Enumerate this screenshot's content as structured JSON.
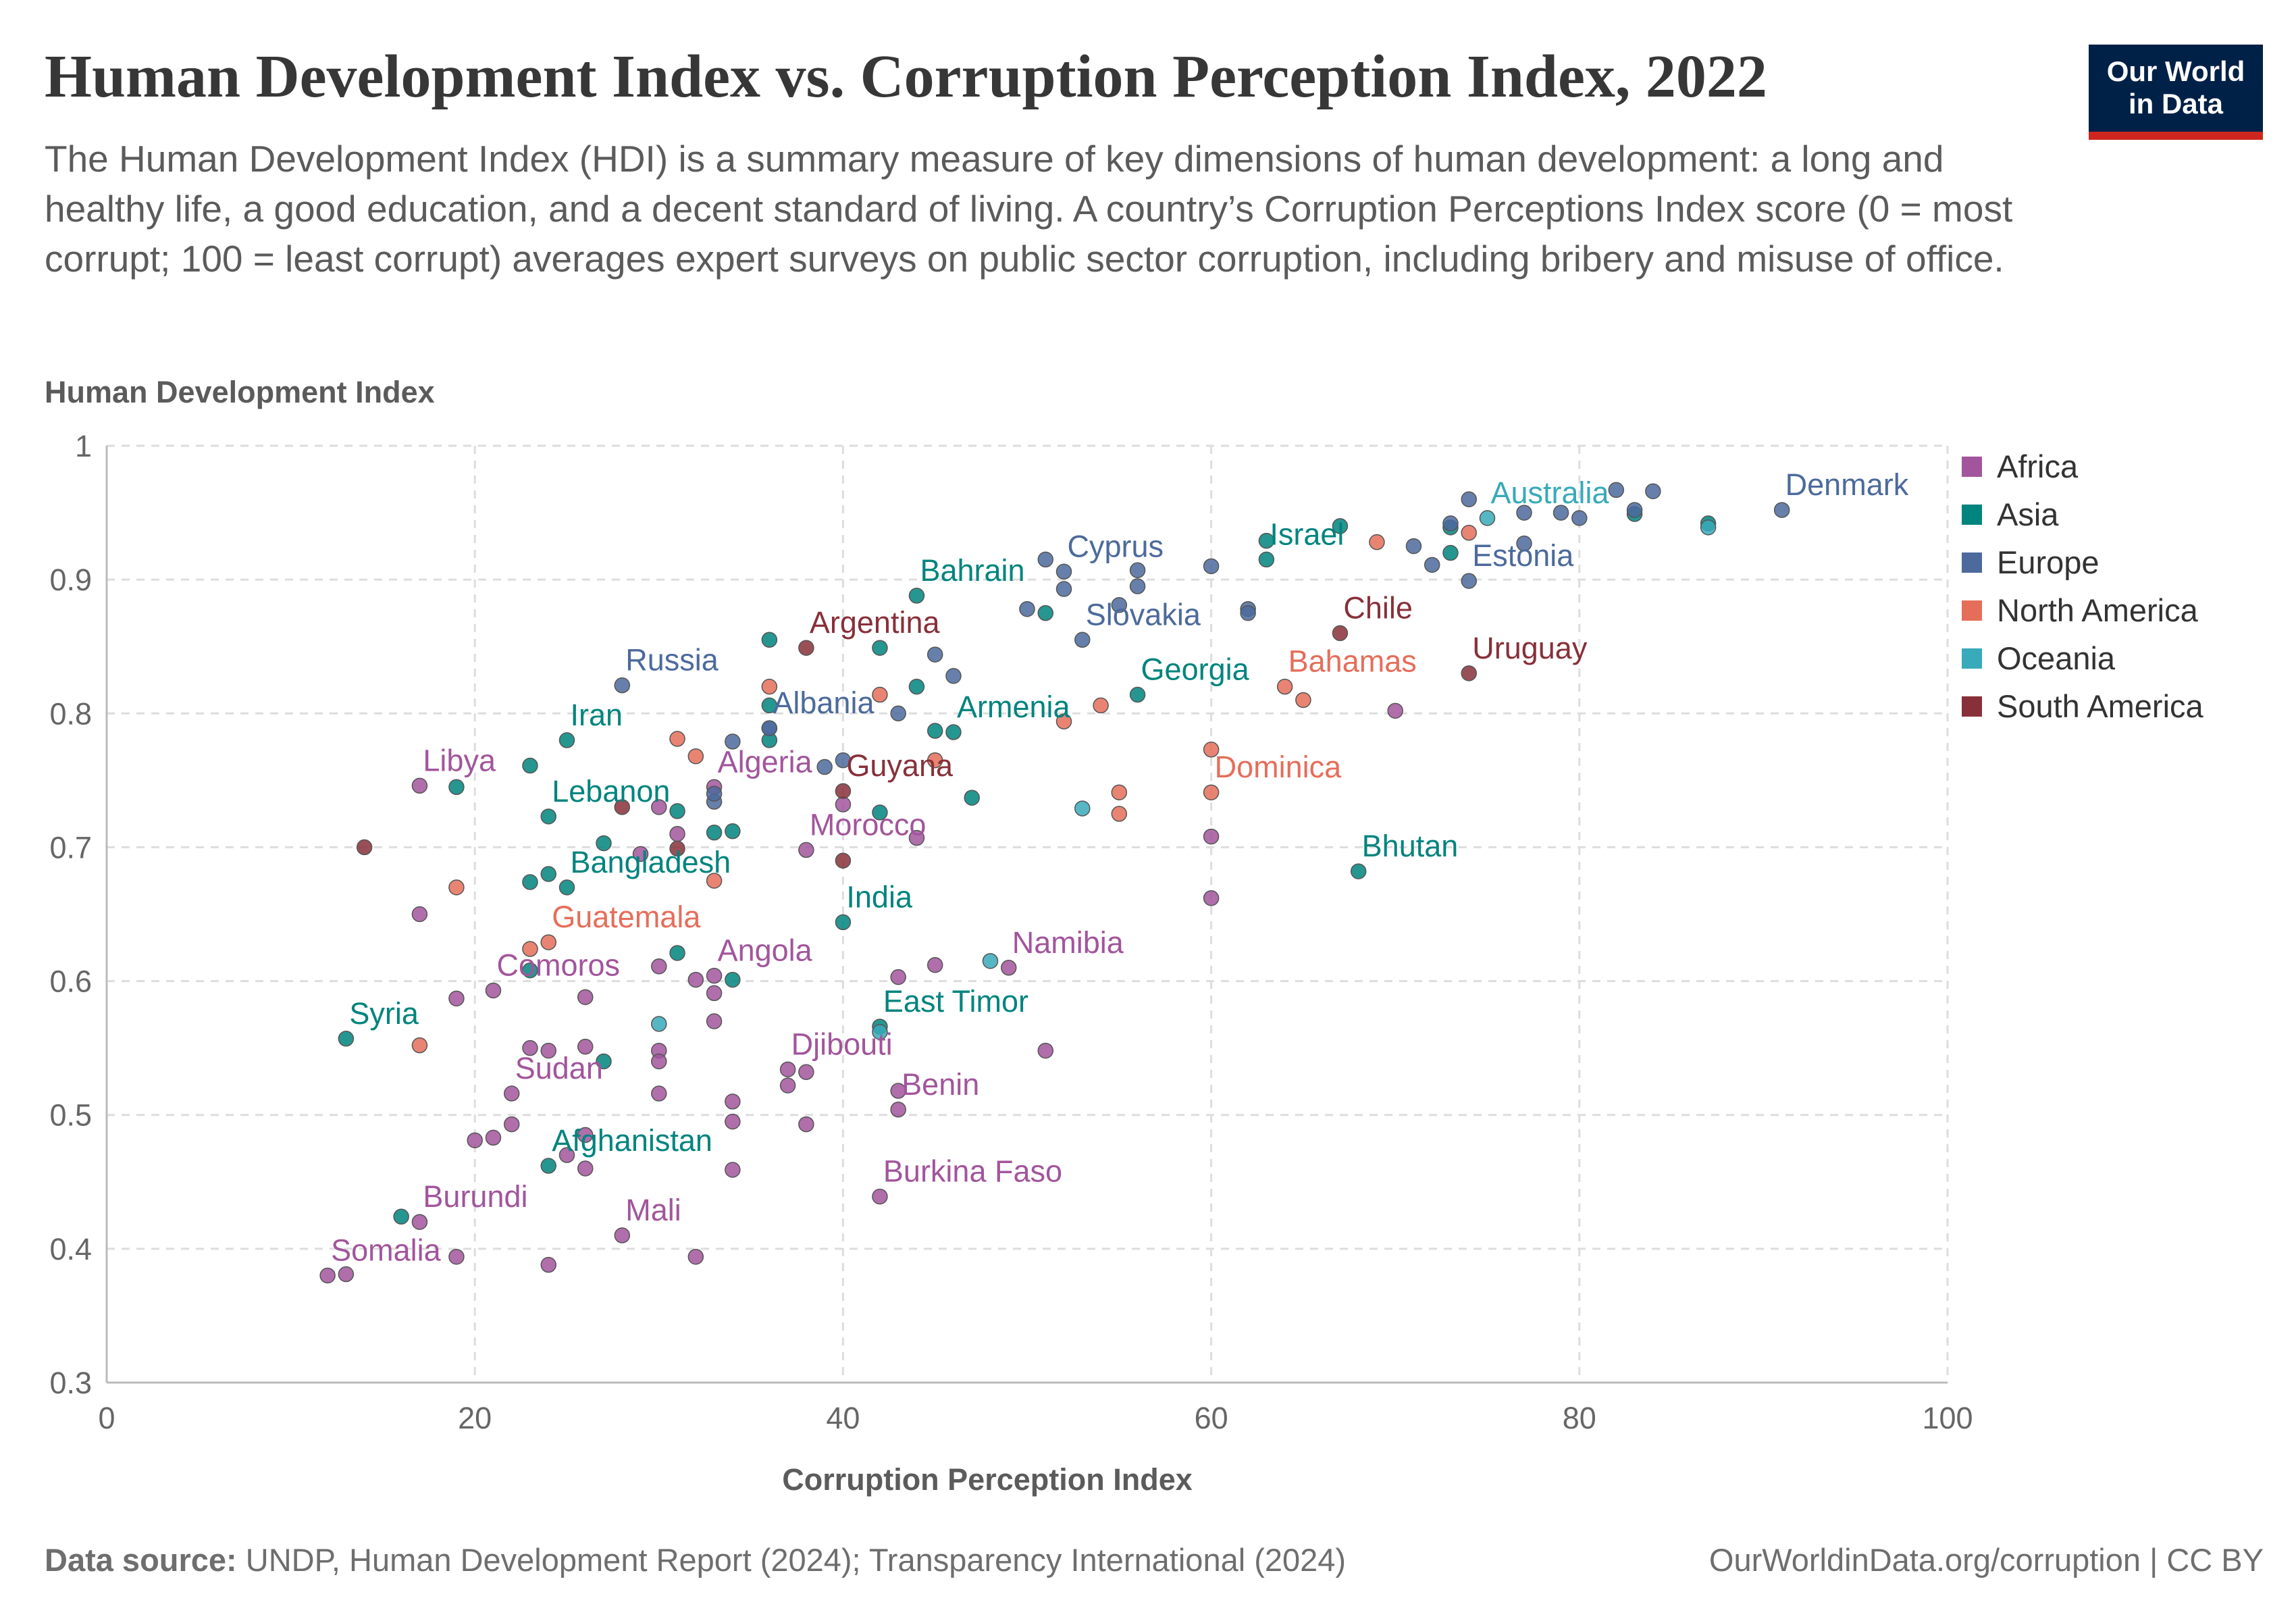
{
  "title": "Human Development Index vs. Corruption Perception Index, 2022",
  "subtitle": "The Human Development Index (HDI) is a summary measure of key dimensions of human development: a long and healthy life, a good education, and a decent standard of living. A country’s Corruption Perceptions Index score (0 = most corrupt; 100 = least corrupt) averages expert surveys on public sector corruption, including bribery and misuse of office.",
  "logo": {
    "line1": "Our World",
    "line2": "in Data"
  },
  "footer": {
    "source_label": "Data source:",
    "source_text": "UNDP, Human Development Report (2024); Transparency International (2024)",
    "url_text": "OurWorldinData.org/corruption | CC BY"
  },
  "colors": {
    "Africa": "#a2559c",
    "Asia": "#00847e",
    "Europe": "#4c6a9c",
    "North America": "#e56e5a",
    "Oceania": "#38aaba",
    "South America": "#883039"
  },
  "chart_data": {
    "type": "scatter",
    "title": "Human Development Index vs. Corruption Perception Index, 2022",
    "xlabel": "Corruption Perception Index",
    "ylabel": "Human Development Index",
    "xlim": [
      0,
      100
    ],
    "ylim": [
      0.3,
      1
    ],
    "xticks": [
      0,
      20,
      40,
      60,
      80,
      100
    ],
    "yticks": [
      0.3,
      0.4,
      0.5,
      0.6,
      0.7,
      0.8,
      0.9,
      1
    ],
    "grid": true,
    "legend_position": "right",
    "series": [
      {
        "name": "Africa",
        "points": [
          {
            "x": 12,
            "y": 0.38,
            "label": "Somalia"
          },
          {
            "x": 13,
            "y": 0.381
          },
          {
            "x": 17,
            "y": 0.42,
            "label": "Burundi"
          },
          {
            "x": 17,
            "y": 0.746,
            "label": "Libya"
          },
          {
            "x": 17,
            "y": 0.65
          },
          {
            "x": 19,
            "y": 0.394
          },
          {
            "x": 19,
            "y": 0.587
          },
          {
            "x": 20,
            "y": 0.481
          },
          {
            "x": 21,
            "y": 0.483
          },
          {
            "x": 21,
            "y": 0.593,
            "label": "Comoros"
          },
          {
            "x": 22,
            "y": 0.516,
            "label": "Sudan"
          },
          {
            "x": 22,
            "y": 0.493
          },
          {
            "x": 23,
            "y": 0.55
          },
          {
            "x": 24,
            "y": 0.548
          },
          {
            "x": 24,
            "y": 0.388
          },
          {
            "x": 25,
            "y": 0.47
          },
          {
            "x": 26,
            "y": 0.46
          },
          {
            "x": 26,
            "y": 0.551
          },
          {
            "x": 26,
            "y": 0.588
          },
          {
            "x": 26,
            "y": 0.485
          },
          {
            "x": 28,
            "y": 0.41,
            "label": "Mali"
          },
          {
            "x": 29,
            "y": 0.695
          },
          {
            "x": 30,
            "y": 0.548
          },
          {
            "x": 30,
            "y": 0.54
          },
          {
            "x": 30,
            "y": 0.516
          },
          {
            "x": 30,
            "y": 0.611
          },
          {
            "x": 30,
            "y": 0.73
          },
          {
            "x": 31,
            "y": 0.71
          },
          {
            "x": 32,
            "y": 0.394
          },
          {
            "x": 32,
            "y": 0.601
          },
          {
            "x": 33,
            "y": 0.591
          },
          {
            "x": 33,
            "y": 0.57
          },
          {
            "x": 33,
            "y": 0.745,
            "label": "Algeria"
          },
          {
            "x": 33,
            "y": 0.604,
            "label": "Angola"
          },
          {
            "x": 34,
            "y": 0.459
          },
          {
            "x": 34,
            "y": 0.51
          },
          {
            "x": 34,
            "y": 0.495
          },
          {
            "x": 37,
            "y": 0.534,
            "label": "Djibouti"
          },
          {
            "x": 37,
            "y": 0.522
          },
          {
            "x": 38,
            "y": 0.532
          },
          {
            "x": 38,
            "y": 0.493
          },
          {
            "x": 38,
            "y": 0.698,
            "label": "Morocco"
          },
          {
            "x": 40,
            "y": 0.732
          },
          {
            "x": 42,
            "y": 0.439,
            "label": "Burkina Faso"
          },
          {
            "x": 43,
            "y": 0.504,
            "label": "Benin"
          },
          {
            "x": 43,
            "y": 0.518
          },
          {
            "x": 43,
            "y": 0.603
          },
          {
            "x": 44,
            "y": 0.707
          },
          {
            "x": 45,
            "y": 0.612
          },
          {
            "x": 49,
            "y": 0.61,
            "label": "Namibia"
          },
          {
            "x": 51,
            "y": 0.548
          },
          {
            "x": 60,
            "y": 0.708
          },
          {
            "x": 60,
            "y": 0.662
          },
          {
            "x": 70,
            "y": 0.802
          }
        ]
      },
      {
        "name": "Asia",
        "points": [
          {
            "x": 13,
            "y": 0.557,
            "label": "Syria"
          },
          {
            "x": 16,
            "y": 0.424
          },
          {
            "x": 19,
            "y": 0.745
          },
          {
            "x": 23,
            "y": 0.761
          },
          {
            "x": 23,
            "y": 0.674
          },
          {
            "x": 23,
            "y": 0.608
          },
          {
            "x": 24,
            "y": 0.462,
            "label": "Afghanistan"
          },
          {
            "x": 24,
            "y": 0.723,
            "label": "Lebanon"
          },
          {
            "x": 24,
            "y": 0.68
          },
          {
            "x": 25,
            "y": 0.67,
            "label": "Bangladesh"
          },
          {
            "x": 25,
            "y": 0.78,
            "label": "Iran"
          },
          {
            "x": 27,
            "y": 0.54
          },
          {
            "x": 27,
            "y": 0.703
          },
          {
            "x": 31,
            "y": 0.727
          },
          {
            "x": 31,
            "y": 0.621
          },
          {
            "x": 33,
            "y": 0.711
          },
          {
            "x": 34,
            "y": 0.712
          },
          {
            "x": 34,
            "y": 0.601
          },
          {
            "x": 36,
            "y": 0.855
          },
          {
            "x": 36,
            "y": 0.78
          },
          {
            "x": 36,
            "y": 0.806
          },
          {
            "x": 40,
            "y": 0.644,
            "label": "India"
          },
          {
            "x": 42,
            "y": 0.566,
            "label": "East Timor"
          },
          {
            "x": 42,
            "y": 0.726
          },
          {
            "x": 42,
            "y": 0.849
          },
          {
            "x": 44,
            "y": 0.82
          },
          {
            "x": 44,
            "y": 0.888,
            "label": "Bahrain"
          },
          {
            "x": 45,
            "y": 0.787
          },
          {
            "x": 46,
            "y": 0.786,
            "label": "Armenia"
          },
          {
            "x": 47,
            "y": 0.737
          },
          {
            "x": 51,
            "y": 0.875
          },
          {
            "x": 56,
            "y": 0.814,
            "label": "Georgia"
          },
          {
            "x": 63,
            "y": 0.915,
            "label": "Israel"
          },
          {
            "x": 63,
            "y": 0.929
          },
          {
            "x": 67,
            "y": 0.94
          },
          {
            "x": 68,
            "y": 0.682,
            "label": "Bhutan"
          },
          {
            "x": 73,
            "y": 0.92
          },
          {
            "x": 73,
            "y": 0.939
          },
          {
            "x": 83,
            "y": 0.949
          },
          {
            "x": 87,
            "y": 0.942
          }
        ]
      },
      {
        "name": "Europe",
        "points": [
          {
            "x": 28,
            "y": 0.821,
            "label": "Russia"
          },
          {
            "x": 33,
            "y": 0.734
          },
          {
            "x": 33,
            "y": 0.74
          },
          {
            "x": 34,
            "y": 0.779
          },
          {
            "x": 36,
            "y": 0.789
          },
          {
            "x": 36,
            "y": 0.789,
            "label": "Albania"
          },
          {
            "x": 39,
            "y": 0.76
          },
          {
            "x": 40,
            "y": 0.765
          },
          {
            "x": 43,
            "y": 0.8
          },
          {
            "x": 45,
            "y": 0.844
          },
          {
            "x": 46,
            "y": 0.828
          },
          {
            "x": 50,
            "y": 0.878
          },
          {
            "x": 51,
            "y": 0.915
          },
          {
            "x": 52,
            "y": 0.893
          },
          {
            "x": 52,
            "y": 0.906,
            "label": "Cyprus"
          },
          {
            "x": 53,
            "y": 0.855,
            "label": "Slovakia"
          },
          {
            "x": 55,
            "y": 0.881
          },
          {
            "x": 56,
            "y": 0.907
          },
          {
            "x": 56,
            "y": 0.895
          },
          {
            "x": 60,
            "y": 0.91
          },
          {
            "x": 62,
            "y": 0.878
          },
          {
            "x": 62,
            "y": 0.875
          },
          {
            "x": 71,
            "y": 0.925
          },
          {
            "x": 72,
            "y": 0.911
          },
          {
            "x": 73,
            "y": 0.942
          },
          {
            "x": 74,
            "y": 0.96
          },
          {
            "x": 74,
            "y": 0.899,
            "label": "Estonia"
          },
          {
            "x": 77,
            "y": 0.95
          },
          {
            "x": 77,
            "y": 0.927
          },
          {
            "x": 79,
            "y": 0.95
          },
          {
            "x": 80,
            "y": 0.946
          },
          {
            "x": 82,
            "y": 0.967
          },
          {
            "x": 83,
            "y": 0.952
          },
          {
            "x": 84,
            "y": 0.966
          },
          {
            "x": 91,
            "y": 0.952,
            "label": "Denmark"
          }
        ]
      },
      {
        "name": "North America",
        "points": [
          {
            "x": 17,
            "y": 0.552
          },
          {
            "x": 19,
            "y": 0.67
          },
          {
            "x": 23,
            "y": 0.624
          },
          {
            "x": 24,
            "y": 0.629,
            "label": "Guatemala"
          },
          {
            "x": 31,
            "y": 0.781
          },
          {
            "x": 32,
            "y": 0.768
          },
          {
            "x": 33,
            "y": 0.675
          },
          {
            "x": 36,
            "y": 0.82
          },
          {
            "x": 42,
            "y": 0.814
          },
          {
            "x": 45,
            "y": 0.765
          },
          {
            "x": 52,
            "y": 0.794
          },
          {
            "x": 54,
            "y": 0.806
          },
          {
            "x": 55,
            "y": 0.741
          },
          {
            "x": 55,
            "y": 0.725
          },
          {
            "x": 60,
            "y": 0.773
          },
          {
            "x": 60,
            "y": 0.741,
            "label": "Dominica"
          },
          {
            "x": 64,
            "y": 0.82,
            "label": "Bahamas"
          },
          {
            "x": 65,
            "y": 0.81
          },
          {
            "x": 69,
            "y": 0.928
          },
          {
            "x": 74,
            "y": 0.935
          }
        ]
      },
      {
        "name": "Oceania",
        "points": [
          {
            "x": 30,
            "y": 0.568
          },
          {
            "x": 42,
            "y": 0.562
          },
          {
            "x": 48,
            "y": 0.615
          },
          {
            "x": 53,
            "y": 0.729
          },
          {
            "x": 75,
            "y": 0.946,
            "label": "Australia"
          },
          {
            "x": 87,
            "y": 0.939
          }
        ]
      },
      {
        "name": "South America",
        "points": [
          {
            "x": 14,
            "y": 0.7
          },
          {
            "x": 28,
            "y": 0.73
          },
          {
            "x": 31,
            "y": 0.699
          },
          {
            "x": 38,
            "y": 0.849,
            "label": "Argentina"
          },
          {
            "x": 40,
            "y": 0.742,
            "label": "Guyana"
          },
          {
            "x": 40,
            "y": 0.69
          },
          {
            "x": 67,
            "y": 0.86,
            "label": "Chile"
          },
          {
            "x": 74,
            "y": 0.83,
            "label": "Uruguay"
          }
        ]
      }
    ]
  }
}
